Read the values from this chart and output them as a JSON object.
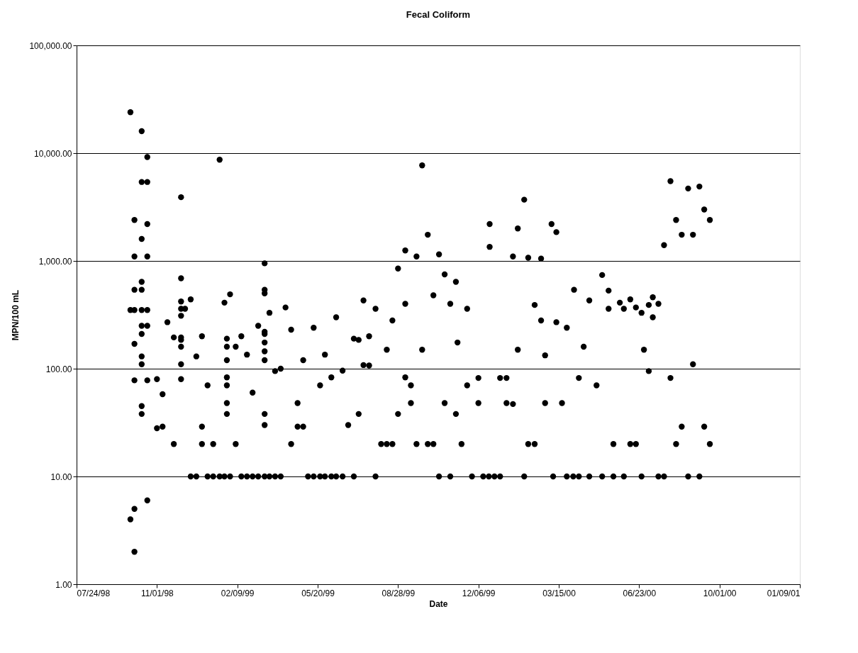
{
  "chart_data": {
    "type": "scatter",
    "title": "Fecal Coliform",
    "xlabel": "Date",
    "ylabel": "MPN/100 mL",
    "log": true,
    "grid": "y",
    "legend": false,
    "marker": "circle",
    "xlim": [
      "1998-07-24",
      "2001-01-09"
    ],
    "xticks": [
      {
        "value": "1998-07-24",
        "label": "07/24/98"
      },
      {
        "value": "1998-11-01",
        "label": "11/01/98"
      },
      {
        "value": "1999-02-09",
        "label": "02/09/99"
      },
      {
        "value": "1999-05-20",
        "label": "05/20/99"
      },
      {
        "value": "1999-08-28",
        "label": "08/28/99"
      },
      {
        "value": "1999-12-06",
        "label": "12/06/99"
      },
      {
        "value": "2000-03-15",
        "label": "03/15/00"
      },
      {
        "value": "2000-06-23",
        "label": "06/23/00"
      },
      {
        "value": "2000-10-01",
        "label": "10/01/00"
      },
      {
        "value": "2001-01-09",
        "label": "01/09/01"
      }
    ],
    "ylim": [
      1,
      100000
    ],
    "yticks": [
      {
        "value": 1,
        "label": "1.00"
      },
      {
        "value": 10,
        "label": "10.00"
      },
      {
        "value": 100,
        "label": "100.00"
      },
      {
        "value": 1000,
        "label": "1,000.00"
      },
      {
        "value": 10000,
        "label": "10,000.00"
      },
      {
        "value": 100000,
        "label": "100,000.00"
      }
    ],
    "series": [
      {
        "color": "#000000",
        "x": [
          "1998-09-29",
          "1998-09-29",
          "1998-09-29",
          "1998-10-04",
          "1998-10-04",
          "1998-10-04",
          "1998-10-04",
          "1998-10-04",
          "1998-10-04",
          "1998-10-04",
          "1998-10-04",
          "1998-10-13",
          "1998-10-13",
          "1998-10-13",
          "1998-10-13",
          "1998-10-13",
          "1998-10-13",
          "1998-10-13",
          "1998-10-13",
          "1998-10-13",
          "1998-10-13",
          "1998-10-13",
          "1998-10-13",
          "1998-10-20",
          "1998-10-20",
          "1998-10-20",
          "1998-10-20",
          "1998-10-20",
          "1998-10-20",
          "1998-10-20",
          "1998-10-20",
          "1998-11-01",
          "1998-11-01",
          "1998-11-08",
          "1998-11-08",
          "1998-11-14",
          "1998-11-22",
          "1998-11-22",
          "1998-12-01",
          "1998-12-01",
          "1998-12-01",
          "1998-12-01",
          "1998-12-01",
          "1998-12-01",
          "1998-12-01",
          "1998-12-01",
          "1998-12-01",
          "1998-12-01",
          "1998-12-06",
          "1998-12-13",
          "1998-12-13",
          "1998-12-20",
          "1998-12-20",
          "1998-12-27",
          "1998-12-27",
          "1998-12-27",
          "1999-01-03",
          "1999-01-03",
          "1999-01-10",
          "1999-01-10",
          "1999-01-18",
          "1999-01-18",
          "1999-01-24",
          "1999-01-24",
          "1999-01-27",
          "1999-01-27",
          "1999-01-27",
          "1999-01-27",
          "1999-01-27",
          "1999-01-27",
          "1999-01-27",
          "1999-01-31",
          "1999-01-31",
          "1999-02-07",
          "1999-02-07",
          "1999-02-14",
          "1999-02-14",
          "1999-02-21",
          "1999-02-21",
          "1999-02-28",
          "1999-02-28",
          "1999-03-07",
          "1999-03-07",
          "1999-03-15",
          "1999-03-15",
          "1999-03-15",
          "1999-03-15",
          "1999-03-15",
          "1999-03-15",
          "1999-03-15",
          "1999-03-15",
          "1999-03-15",
          "1999-03-15",
          "1999-03-15",
          "1999-03-21",
          "1999-03-21",
          "1999-03-28",
          "1999-03-28",
          "1999-04-04",
          "1999-04-04",
          "1999-04-10",
          "1999-04-17",
          "1999-04-17",
          "1999-04-25",
          "1999-04-25",
          "1999-05-02",
          "1999-05-02",
          "1999-05-08",
          "1999-05-15",
          "1999-05-15",
          "1999-05-23",
          "1999-05-23",
          "1999-05-29",
          "1999-05-29",
          "1999-06-06",
          "1999-06-06",
          "1999-06-12",
          "1999-06-12",
          "1999-06-20",
          "1999-06-20",
          "1999-06-27",
          "1999-07-04",
          "1999-07-04",
          "1999-07-10",
          "1999-07-10",
          "1999-07-16",
          "1999-07-16",
          "1999-07-23",
          "1999-07-23",
          "1999-07-31",
          "1999-07-31",
          "1999-08-07",
          "1999-08-14",
          "1999-08-14",
          "1999-08-21",
          "1999-08-21",
          "1999-08-28",
          "1999-08-28",
          "1999-09-06",
          "1999-09-06",
          "1999-09-06",
          "1999-09-13",
          "1999-09-13",
          "1999-09-20",
          "1999-09-20",
          "1999-09-27",
          "1999-09-27",
          "1999-10-04",
          "1999-10-04",
          "1999-10-11",
          "1999-10-11",
          "1999-10-18",
          "1999-10-18",
          "1999-10-25",
          "1999-10-25",
          "1999-11-01",
          "1999-11-01",
          "1999-11-08",
          "1999-11-08",
          "1999-11-10",
          "1999-11-15",
          "1999-11-22",
          "1999-11-22",
          "1999-11-28",
          "1999-12-06",
          "1999-12-06",
          "1999-12-12",
          "1999-12-19",
          "1999-12-20",
          "1999-12-20",
          "1999-12-26",
          "2000-01-02",
          "2000-01-02",
          "2000-01-10",
          "2000-01-10",
          "2000-01-18",
          "2000-01-18",
          "2000-01-24",
          "2000-01-24",
          "2000-02-01",
          "2000-02-01",
          "2000-02-06",
          "2000-02-06",
          "2000-02-14",
          "2000-02-14",
          "2000-02-22",
          "2000-02-22",
          "2000-02-27",
          "2000-02-27",
          "2000-03-06",
          "2000-03-08",
          "2000-03-12",
          "2000-03-12",
          "2000-03-19",
          "2000-03-25",
          "2000-03-25",
          "2000-04-02",
          "2000-04-03",
          "2000-04-09",
          "2000-04-09",
          "2000-04-15",
          "2000-04-22",
          "2000-04-22",
          "2000-05-01",
          "2000-05-08",
          "2000-05-08",
          "2000-05-16",
          "2000-05-16",
          "2000-05-22",
          "2000-05-22",
          "2000-05-30",
          "2000-06-04",
          "2000-06-04",
          "2000-06-12",
          "2000-06-12",
          "2000-06-19",
          "2000-06-19",
          "2000-06-26",
          "2000-06-26",
          "2000-06-29",
          "2000-07-05",
          "2000-07-05",
          "2000-07-10",
          "2000-07-10",
          "2000-07-17",
          "2000-07-17",
          "2000-07-24",
          "2000-07-24",
          "2000-08-01",
          "2000-08-01",
          "2000-08-08",
          "2000-08-08",
          "2000-08-15",
          "2000-08-15",
          "2000-08-23",
          "2000-08-23",
          "2000-08-29",
          "2000-08-29",
          "2000-09-06",
          "2000-09-06",
          "2000-09-12",
          "2000-09-12",
          "2000-09-19",
          "2000-09-19"
        ],
        "values": [
          24000,
          350,
          4,
          2400,
          1100,
          540,
          350,
          170,
          78,
          5,
          2,
          16000,
          5400,
          1600,
          640,
          540,
          350,
          250,
          210,
          130,
          110,
          45,
          38,
          9200,
          5400,
          2200,
          1100,
          350,
          250,
          78,
          6,
          80,
          28,
          58,
          29,
          270,
          195,
          20,
          3900,
          690,
          420,
          360,
          310,
          195,
          185,
          160,
          110,
          80,
          360,
          440,
          10,
          130,
          10,
          200,
          29,
          20,
          70,
          10,
          20,
          10,
          8700,
          10,
          410,
          10,
          190,
          160,
          120,
          83,
          70,
          48,
          38,
          490,
          10,
          160,
          20,
          200,
          10,
          135,
          10,
          60,
          10,
          250,
          10,
          950,
          540,
          500,
          220,
          210,
          175,
          145,
          120,
          38,
          30,
          10,
          330,
          10,
          95,
          10,
          100,
          10,
          370,
          230,
          20,
          48,
          29,
          120,
          29,
          10,
          240,
          10,
          70,
          10,
          135,
          10,
          83,
          10,
          300,
          10,
          96,
          10,
          30,
          190,
          10,
          185,
          38,
          430,
          108,
          200,
          107,
          360,
          10,
          20,
          150,
          20,
          280,
          20,
          850,
          38,
          1250,
          400,
          83,
          70,
          48,
          1100,
          20,
          7700,
          150,
          1750,
          20,
          480,
          20,
          1150,
          10,
          750,
          48,
          400,
          10,
          640,
          38,
          175,
          20,
          360,
          70,
          10,
          82,
          48,
          10,
          10,
          2200,
          1350,
          10,
          82,
          10,
          82,
          48,
          1100,
          47,
          2000,
          150,
          3700,
          10,
          1070,
          20,
          390,
          20,
          1050,
          280,
          133,
          48,
          2200,
          10,
          1850,
          270,
          48,
          240,
          10,
          10,
          540,
          82,
          10,
          160,
          430,
          10,
          70,
          740,
          10,
          530,
          360,
          20,
          10,
          410,
          360,
          10,
          440,
          20,
          370,
          20,
          330,
          10,
          150,
          390,
          95,
          460,
          300,
          400,
          10,
          1400,
          10,
          5500,
          82,
          2400,
          20,
          1750,
          29,
          4700,
          10,
          1750,
          110,
          4900,
          10,
          3000,
          29,
          2400,
          20
        ]
      }
    ]
  }
}
